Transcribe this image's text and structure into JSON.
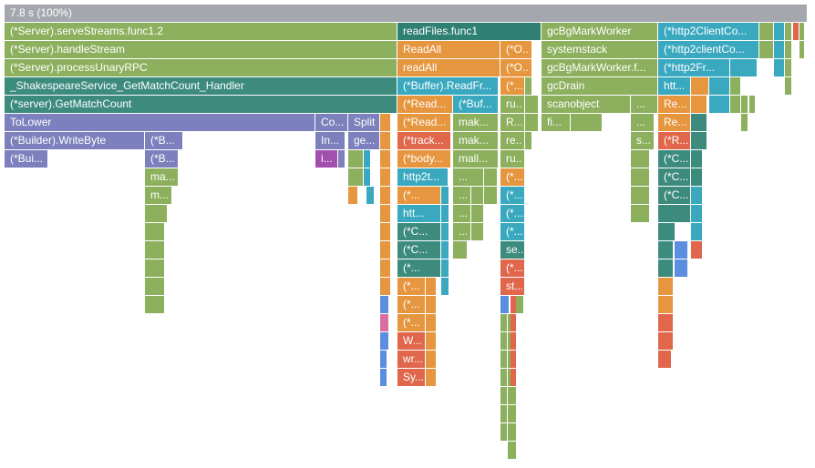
{
  "frames": [
    [
      "7.8 s (100%)"
    ],
    [
      "(*Server).serveStreams.func1.2",
      "readFiles.func1",
      "gcBgMarkWorker",
      "(*http2ClientCo..."
    ],
    [
      "(*Server).handleStream",
      "ReadAll",
      "(*O...",
      "systemstack",
      "(*http2clientCo..."
    ],
    [
      "(*Server).processUnaryRPC",
      "readAll",
      "(*O...",
      "gcBgMarkWorker.f...",
      "(*http2Fr..."
    ],
    [
      "_ShakespeareService_GetMatchCount_Handler",
      "(*Buffer).ReadFr...",
      "(*...",
      "gcDrain",
      "htt..."
    ],
    [
      "(*server).GetMatchCount",
      "(*Read...",
      "(*Buf...",
      "ru...",
      "scanobject",
      "...",
      "Re..."
    ],
    [
      "ToLower",
      "Co...",
      "Split",
      "(*Read...",
      "mak...",
      "R...",
      "fi...",
      "...",
      "Re..."
    ],
    [
      "(*Builder).WriteByte",
      "(*B...",
      "In...",
      "ge...",
      "(*track...",
      "mak...",
      "re...",
      "s...",
      "(*R..."
    ],
    [
      "(*Bui...",
      "(*B...",
      "i...",
      "(*body...",
      "mall...",
      "ru...",
      "(*C..."
    ],
    [
      "ma...",
      "http2t...",
      "...",
      "(*...",
      "(*C..."
    ],
    [
      "m...",
      "(*...",
      "...",
      "(*...",
      "(*C..."
    ],
    [
      "htt...",
      "...",
      "(*..."
    ],
    [
      "(*C...",
      "...",
      "(*..."
    ],
    [
      "(*C...",
      "se..."
    ],
    [
      "(*...",
      "(*..."
    ],
    [
      "(*...",
      "st..."
    ],
    [
      "(*..."
    ],
    [
      "(*..."
    ],
    [
      "W..."
    ],
    [
      "wr..."
    ],
    [
      "Sy..."
    ]
  ]
}
